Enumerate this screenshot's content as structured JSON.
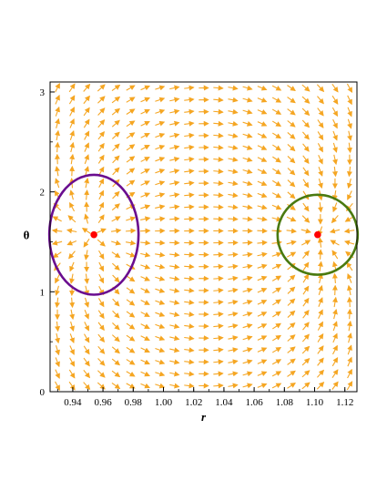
{
  "chart_data": {
    "type": "vector_field",
    "title": "",
    "xlabel": "r",
    "ylabel": "θ",
    "xlim": [
      0.925,
      1.128
    ],
    "ylim": [
      0,
      3.1
    ],
    "x_ticks": [
      {
        "value": 0.94,
        "label": "0.94"
      },
      {
        "value": 0.96,
        "label": "0.96"
      },
      {
        "value": 0.98,
        "label": "0.98"
      },
      {
        "value": 1.0,
        "label": "1.00"
      },
      {
        "value": 1.02,
        "label": "1.02"
      },
      {
        "value": 1.04,
        "label": "1.04"
      },
      {
        "value": 1.06,
        "label": "1.06"
      },
      {
        "value": 1.08,
        "label": "1.08"
      },
      {
        "value": 1.1,
        "label": "1.10"
      },
      {
        "value": 1.12,
        "label": "1.12"
      }
    ],
    "y_ticks": [
      {
        "value": 0,
        "label": "0"
      },
      {
        "value": 1,
        "label": "1"
      },
      {
        "value": 2,
        "label": "2"
      },
      {
        "value": 3,
        "label": "3"
      }
    ],
    "grid": false,
    "arrow_color": "#f5a623",
    "equilibria": [
      {
        "r": 0.954,
        "theta": 1.571,
        "color": "#ff0000"
      },
      {
        "r": 1.102,
        "theta": 1.571,
        "color": "#ff0000"
      }
    ],
    "ellipses": [
      {
        "center_r": 0.954,
        "center_theta": 1.571,
        "r_radius": 0.0295,
        "theta_radius": 0.6,
        "color": "#6a0d8f"
      },
      {
        "center_r": 1.102,
        "center_theta": 1.571,
        "r_radius": 0.0265,
        "theta_radius": 0.4,
        "color": "#4a7a10"
      }
    ],
    "field_samples": {
      "r_count": 21,
      "theta_count": 26
    }
  }
}
